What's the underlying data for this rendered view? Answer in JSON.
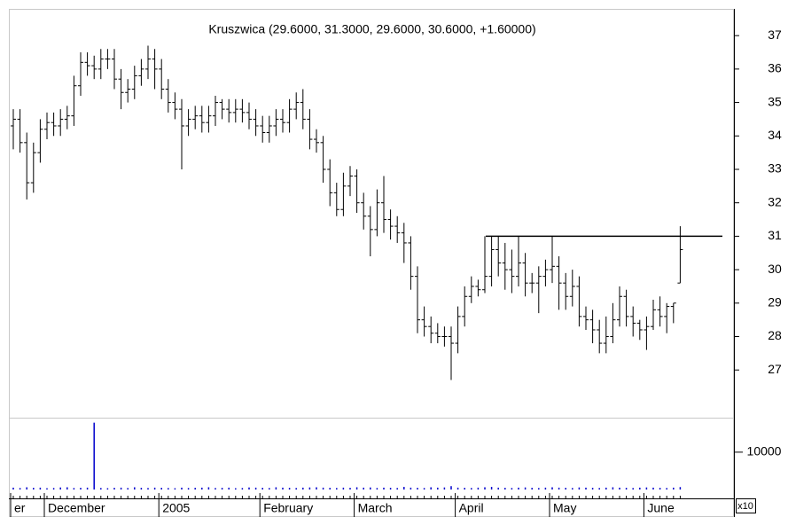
{
  "chart_data": {
    "type": "ohlc",
    "title": "Kruszwica (29.6000, 31.3000, 29.6000, 30.6000, +1.60000)",
    "categories": [
      "er",
      null,
      null,
      null,
      null,
      "December",
      null,
      null,
      null,
      null,
      null,
      null,
      null,
      null,
      null,
      null,
      null,
      null,
      null,
      null,
      null,
      null,
      "2005",
      null,
      null,
      null,
      null,
      null,
      null,
      null,
      null,
      null,
      null,
      null,
      null,
      null,
      null,
      "February",
      null,
      null,
      null,
      null,
      null,
      null,
      null,
      null,
      null,
      null,
      null,
      null,
      null,
      "March",
      null,
      null,
      null,
      null,
      null,
      null,
      null,
      null,
      null,
      null,
      null,
      null,
      null,
      null,
      "April",
      null,
      null,
      null,
      null,
      null,
      null,
      null,
      null,
      null,
      null,
      null,
      null,
      null,
      "May",
      null,
      null,
      null,
      null,
      null,
      null,
      null,
      null,
      null,
      null,
      null,
      null,
      null,
      "June",
      null,
      null,
      null,
      null,
      null
    ],
    "open": [
      34.3,
      34.5,
      33.8,
      32.6,
      33.5,
      34.2,
      34.4,
      34.3,
      34.5,
      34.6,
      35.5,
      36.2,
      36.1,
      36.0,
      36.3,
      36.3,
      35.7,
      35.3,
      35.4,
      35.8,
      36.0,
      36.3,
      36.0,
      35.4,
      35.0,
      34.8,
      34.3,
      34.5,
      34.6,
      34.4,
      34.6,
      35.0,
      34.8,
      34.7,
      34.8,
      34.7,
      34.5,
      34.3,
      34.1,
      34.3,
      34.5,
      34.4,
      34.8,
      35.0,
      34.5,
      33.9,
      33.8,
      33.0,
      32.3,
      31.8,
      32.5,
      32.8,
      32.0,
      31.6,
      31.2,
      32.0,
      31.5,
      31.3,
      31.1,
      30.8,
      29.8,
      28.5,
      28.3,
      28.1,
      28.0,
      28.0,
      27.8,
      28.6,
      29.2,
      29.5,
      29.4,
      29.8,
      30.6,
      30.2,
      30.0,
      29.8,
      30.2,
      29.6,
      29.6,
      29.8,
      30.0,
      30.1,
      29.6,
      29.2,
      29.5,
      28.6,
      28.5,
      28.2,
      27.8,
      28.0,
      28.5,
      29.2,
      28.6,
      28.4,
      28.2,
      28.3,
      28.8,
      28.6,
      28.9,
      29.6
    ],
    "high": [
      34.8,
      34.8,
      34.1,
      33.8,
      34.5,
      34.7,
      34.7,
      34.8,
      34.9,
      35.8,
      36.5,
      36.5,
      36.4,
      36.6,
      36.6,
      36.6,
      36.0,
      35.7,
      36.1,
      36.3,
      36.7,
      36.6,
      36.3,
      35.7,
      35.3,
      35.1,
      34.8,
      34.9,
      34.9,
      34.9,
      35.2,
      35.1,
      35.1,
      35.1,
      35.1,
      35.0,
      34.8,
      34.6,
      34.6,
      34.8,
      34.8,
      35.1,
      35.3,
      35.4,
      34.8,
      34.2,
      34.0,
      33.3,
      32.6,
      32.9,
      33.1,
      33.0,
      32.3,
      31.9,
      32.4,
      32.8,
      31.8,
      31.6,
      31.4,
      31.0,
      30.1,
      28.9,
      28.6,
      28.4,
      28.3,
      28.3,
      28.9,
      29.5,
      29.8,
      29.7,
      31.0,
      31.0,
      31.0,
      30.8,
      30.6,
      31.0,
      30.5,
      29.9,
      30.1,
      30.3,
      31.0,
      30.4,
      29.9,
      30.0,
      29.8,
      28.9,
      28.8,
      28.5,
      28.6,
      29.0,
      29.5,
      29.4,
      28.9,
      28.5,
      28.6,
      29.1,
      29.2,
      29.0,
      29.0,
      31.3
    ],
    "low": [
      33.6,
      33.5,
      32.1,
      32.3,
      33.2,
      33.9,
      34.0,
      34.0,
      34.2,
      34.3,
      35.2,
      35.8,
      35.7,
      35.7,
      36.0,
      35.4,
      34.8,
      35.0,
      35.1,
      35.5,
      35.7,
      35.4,
      35.1,
      34.7,
      34.5,
      33.0,
      34.0,
      34.2,
      34.1,
      34.1,
      34.3,
      34.5,
      34.4,
      34.4,
      34.4,
      34.2,
      34.0,
      33.8,
      33.8,
      34.0,
      34.1,
      34.1,
      34.5,
      34.2,
      33.6,
      33.5,
      32.6,
      31.9,
      31.6,
      31.6,
      32.2,
      31.7,
      31.2,
      30.4,
      31.0,
      31.1,
      30.9,
      30.8,
      30.2,
      29.4,
      28.1,
      28.0,
      27.8,
      27.8,
      27.7,
      26.7,
      27.5,
      28.3,
      29.0,
      29.2,
      29.3,
      29.5,
      29.8,
      29.4,
      29.3,
      29.5,
      29.2,
      29.3,
      28.7,
      29.5,
      29.6,
      28.8,
      28.8,
      28.9,
      28.3,
      28.2,
      27.8,
      27.5,
      27.5,
      27.8,
      28.3,
      28.3,
      28.0,
      27.9,
      27.6,
      28.2,
      28.3,
      28.1,
      28.4,
      29.6
    ],
    "close": [
      34.5,
      33.8,
      32.6,
      33.5,
      34.2,
      34.4,
      34.3,
      34.5,
      34.6,
      35.5,
      36.2,
      36.1,
      36.0,
      36.3,
      36.3,
      35.7,
      35.3,
      35.4,
      35.8,
      36.0,
      36.3,
      36.0,
      35.4,
      35.0,
      34.8,
      34.3,
      34.5,
      34.6,
      34.4,
      34.6,
      35.0,
      34.8,
      34.7,
      34.8,
      34.7,
      34.5,
      34.3,
      34.1,
      34.3,
      34.5,
      34.4,
      34.8,
      35.0,
      34.5,
      33.9,
      33.8,
      33.0,
      32.3,
      31.8,
      32.5,
      32.8,
      32.0,
      31.6,
      31.2,
      32.0,
      31.5,
      31.3,
      31.1,
      30.8,
      29.8,
      28.5,
      28.3,
      28.1,
      28.0,
      28.0,
      27.8,
      28.6,
      29.2,
      29.5,
      29.4,
      29.8,
      30.6,
      30.2,
      30.0,
      29.8,
      30.2,
      29.6,
      29.6,
      29.8,
      30.0,
      30.1,
      29.6,
      29.2,
      29.5,
      28.6,
      28.5,
      28.2,
      27.8,
      28.0,
      28.5,
      29.2,
      28.6,
      28.4,
      28.2,
      28.3,
      28.8,
      28.6,
      28.9,
      29.0,
      30.6
    ],
    "volume": [
      500,
      400,
      600,
      450,
      500,
      350,
      400,
      550,
      600,
      400,
      450,
      500,
      17900,
      400,
      350,
      450,
      500,
      400,
      600,
      450,
      400,
      500,
      450,
      400,
      350,
      500,
      400,
      450,
      500,
      600,
      400,
      450,
      500,
      350,
      400,
      550,
      500,
      450,
      400,
      600,
      500,
      450,
      400,
      500,
      550,
      600,
      500,
      450,
      400,
      500,
      450,
      600,
      500,
      550,
      400,
      500,
      450,
      400,
      700,
      500,
      450,
      400,
      600,
      500,
      550,
      900,
      500,
      450,
      400,
      500,
      600,
      700,
      500,
      450,
      400,
      500,
      550,
      450,
      400,
      500,
      600,
      500,
      450,
      400,
      550,
      500,
      450,
      400,
      500,
      600,
      500,
      450,
      400,
      500,
      550,
      500,
      450,
      400,
      500,
      650
    ],
    "ylim": [
      25.6,
      37.8
    ],
    "yticks": [
      27,
      28,
      29,
      30,
      31,
      32,
      33,
      34,
      35,
      36,
      37
    ],
    "hline": 31,
    "volume_ylim": [
      0,
      19000
    ],
    "volume_yticks": [
      10000
    ],
    "volume_unit": "x10",
    "color": "#000000",
    "volume_color": "#0000cc"
  }
}
